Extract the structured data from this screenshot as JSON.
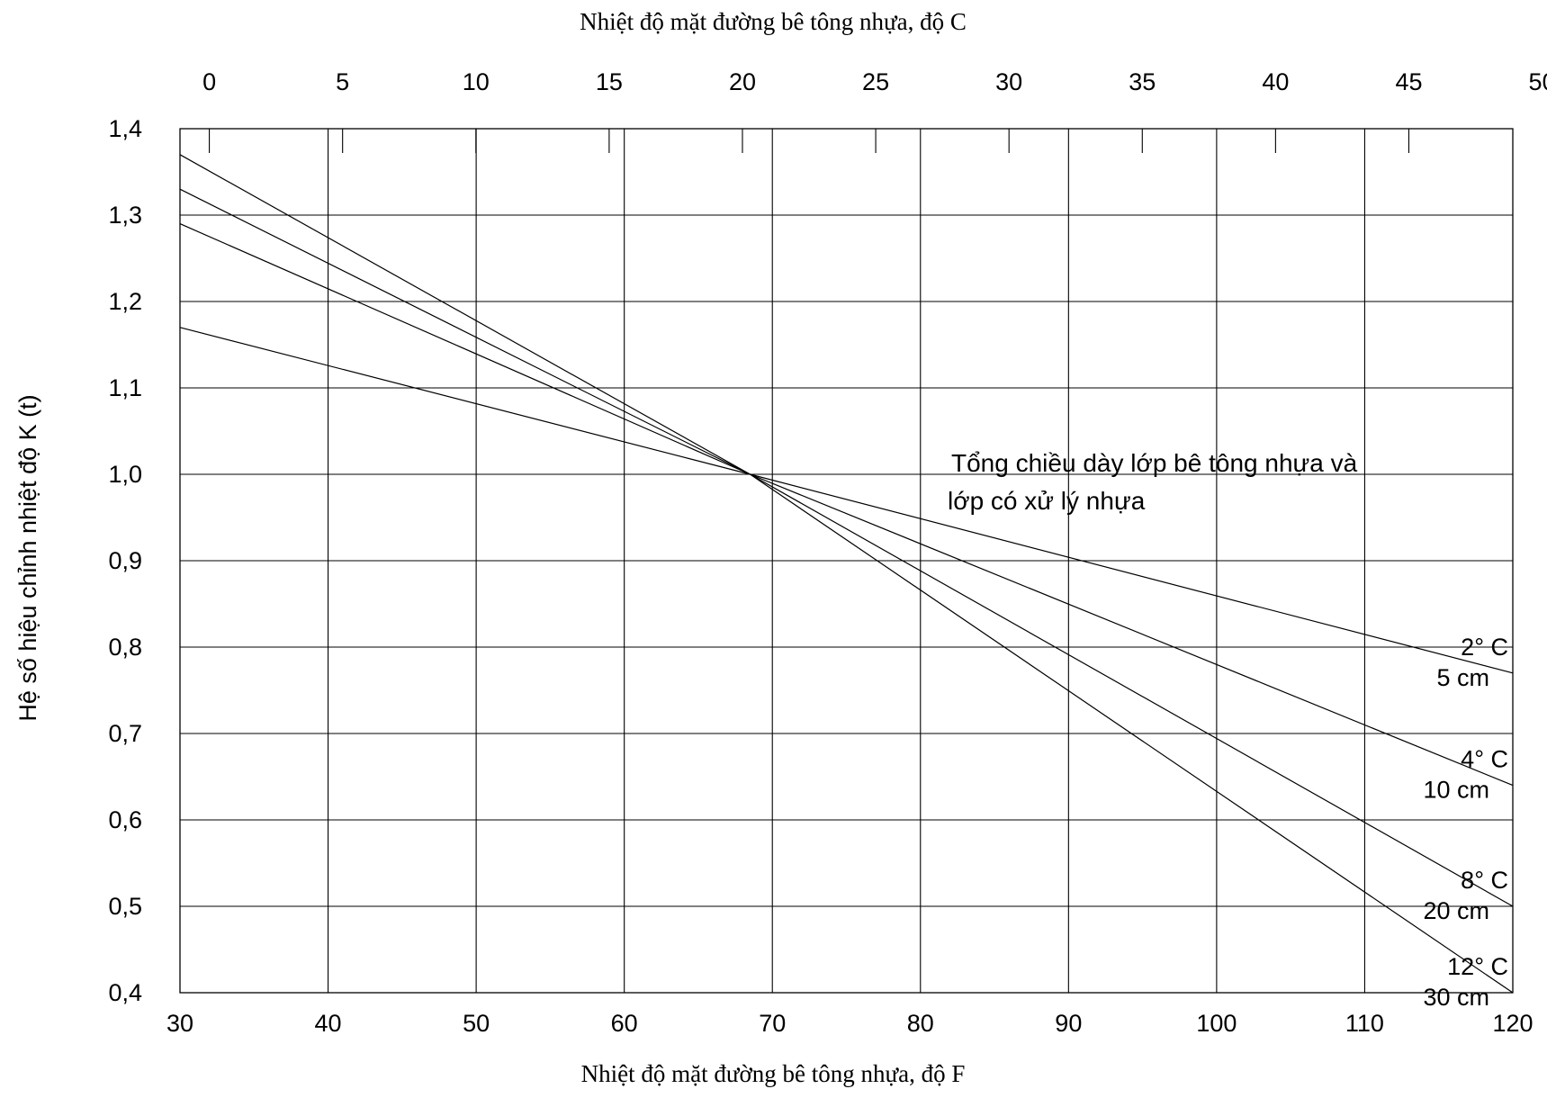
{
  "chart_data": {
    "type": "line",
    "title": "",
    "top_axis": {
      "label": "Nhiệt độ mặt đường bê tông nhựa, độ C",
      "ticks": [
        "0",
        "5",
        "10",
        "15",
        "20",
        "25",
        "30",
        "35",
        "40",
        "45",
        "50"
      ],
      "values": [
        0,
        5,
        10,
        15,
        20,
        25,
        30,
        35,
        40,
        45,
        50
      ],
      "range": [
        -1.1,
        48.9
      ]
    },
    "x_axis": {
      "label": "Nhiệt độ mặt đường bê tông nhựa, độ F",
      "ticks": [
        "30",
        "40",
        "50",
        "60",
        "70",
        "80",
        "90",
        "100",
        "110",
        "120"
      ],
      "values": [
        30,
        40,
        50,
        60,
        70,
        80,
        90,
        100,
        110,
        120
      ],
      "range": [
        30,
        120
      ]
    },
    "y_axis": {
      "label": "Hệ số hiệu chỉnh nhiệt độ K (t)",
      "ticks": [
        "0,4",
        "0,5",
        "0,6",
        "0,7",
        "0,8",
        "0,9",
        "1,0",
        "1,1",
        "1,2",
        "1,3",
        "1,4"
      ],
      "values": [
        0.4,
        0.5,
        0.6,
        0.7,
        0.8,
        0.9,
        1.0,
        1.1,
        1.2,
        1.3,
        1.4
      ],
      "range": [
        0.4,
        1.4
      ]
    },
    "grid": true,
    "annotation": {
      "lines": [
        "Tổng chiều dày lớp bê tông nhựa và",
        "lớp có xử lý nhựa"
      ]
    },
    "series": [
      {
        "name": "2° C",
        "thickness": "5 cm",
        "points": [
          [
            30,
            1.17
          ],
          [
            68.5,
            1.0
          ],
          [
            120,
            0.77
          ]
        ]
      },
      {
        "name": "4° C",
        "thickness": "10 cm",
        "points": [
          [
            30,
            1.29
          ],
          [
            68.5,
            1.0
          ],
          [
            120,
            0.64
          ]
        ]
      },
      {
        "name": "8° C",
        "thickness": "20 cm",
        "points": [
          [
            30,
            1.33
          ],
          [
            68.5,
            1.0
          ],
          [
            120,
            0.5
          ]
        ]
      },
      {
        "name": "12° C",
        "thickness": "30 cm",
        "points": [
          [
            30,
            1.37
          ],
          [
            68.5,
            1.0
          ],
          [
            120,
            0.4
          ]
        ]
      }
    ]
  }
}
